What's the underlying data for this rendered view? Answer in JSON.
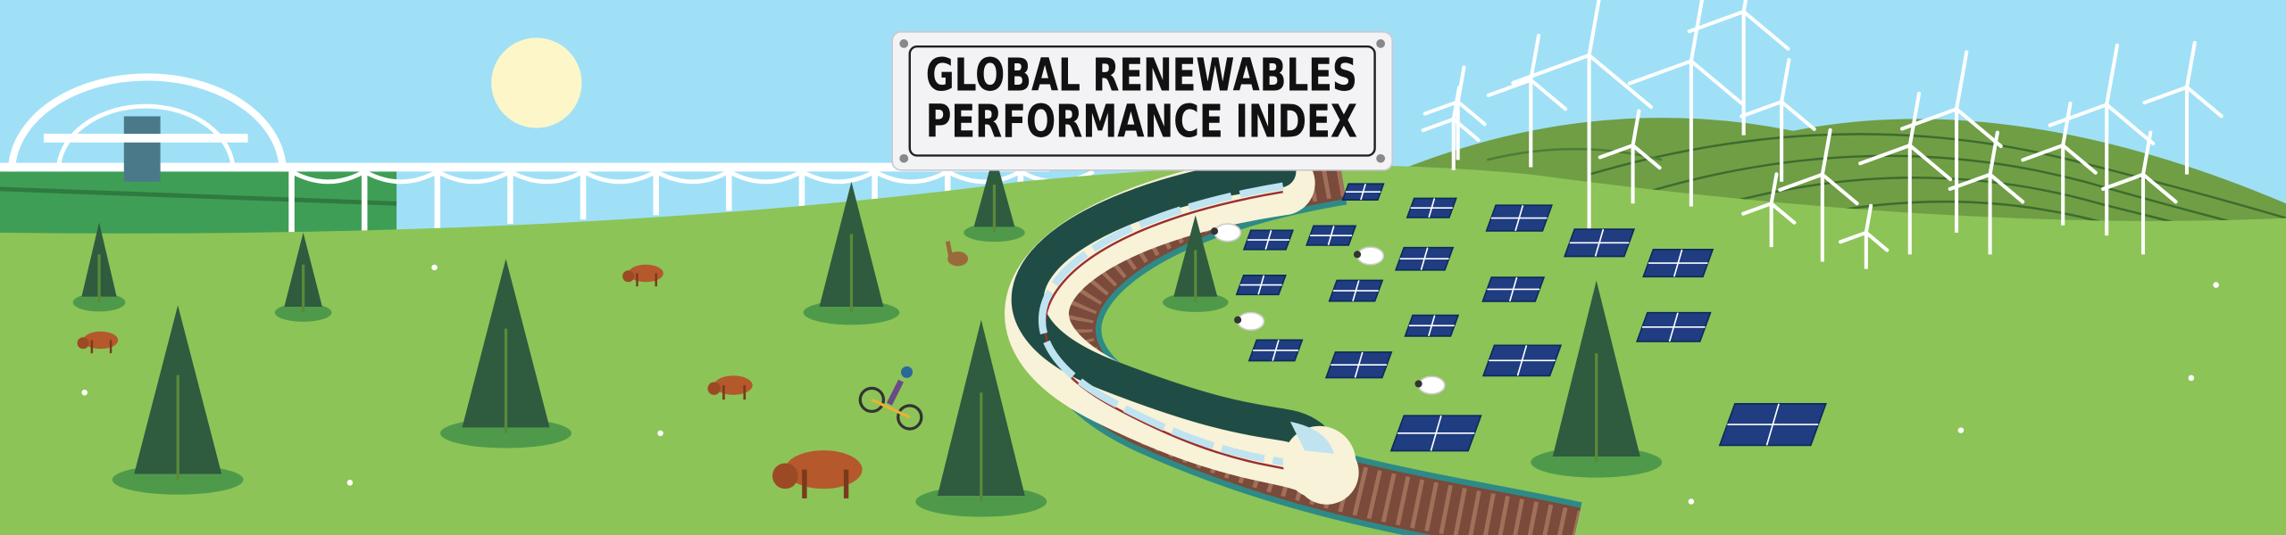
{
  "banner": {
    "title_lines": [
      "GLOBAL RENEWABLES",
      "PERFORMANCE INDEX"
    ]
  }
}
